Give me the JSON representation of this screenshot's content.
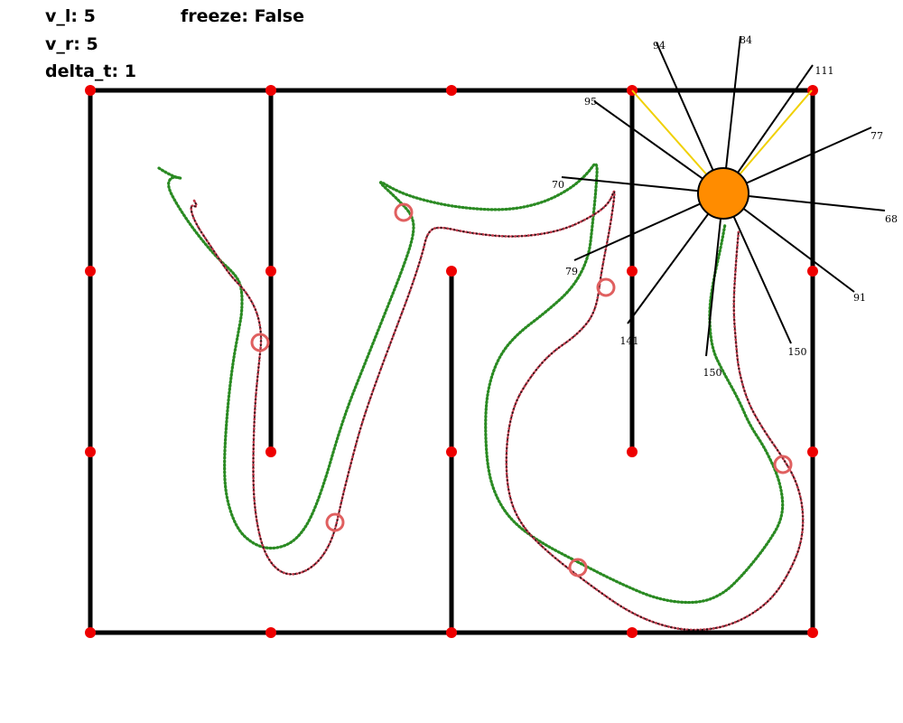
{
  "hud": {
    "v_l_label": "v_l:",
    "v_l_value": "5",
    "v_r_label": "v_r:",
    "v_r_value": "5",
    "delta_t_label": "delta_t:",
    "delta_t_value": "1",
    "freeze_label": "freeze:",
    "freeze_value": "False"
  },
  "colors": {
    "walls": "#000000",
    "grid_points": "#ee0000",
    "robot_body": "#ff8c00",
    "robot_outline": "#000000",
    "sensor_lines": "#000000",
    "heading_lines": "#f0d000",
    "path_true": "#2a8a22",
    "path_estimate": "#c0394a",
    "landmark_circles": "#e06060"
  },
  "robot": {
    "sensor_readings": [
      "84",
      "111",
      "77",
      "68",
      "91",
      "150",
      "150",
      "141",
      "79",
      "70",
      "95",
      "94"
    ]
  }
}
